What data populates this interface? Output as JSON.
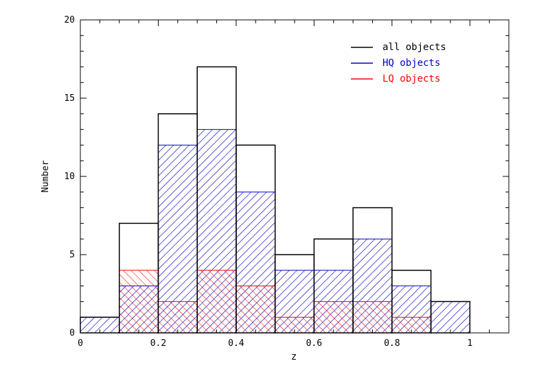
{
  "chart_data": {
    "type": "bar",
    "subtype": "histogram",
    "xlabel": "z",
    "ylabel": "Number",
    "xlim": [
      0,
      1.1
    ],
    "ylim": [
      0,
      20
    ],
    "x_ticks": [
      0,
      0.2,
      0.4,
      0.6,
      0.8,
      1
    ],
    "x_tick_labels": [
      "0",
      "0.2",
      "0.4",
      "0.6",
      "0.8",
      "1"
    ],
    "y_ticks": [
      0,
      5,
      10,
      15,
      20
    ],
    "y_tick_labels": [
      "0",
      "5",
      "10",
      "15",
      "20"
    ],
    "bin_edges": [
      0,
      0.1,
      0.2,
      0.3,
      0.4,
      0.5,
      0.6,
      0.7,
      0.8,
      0.9,
      1.0
    ],
    "series": [
      {
        "name": "all objects",
        "color": "#000000",
        "fill": "none",
        "values": [
          1,
          7,
          14,
          17,
          12,
          5,
          6,
          8,
          4,
          2
        ]
      },
      {
        "name": "HQ objects",
        "color": "#0000cc",
        "fill": "hatch-diagonal",
        "values": [
          1,
          3,
          12,
          13,
          9,
          4,
          4,
          6,
          3,
          2
        ]
      },
      {
        "name": "LQ objects",
        "color": "#ff0000",
        "fill": "hatch-antidiagonal",
        "values": [
          0,
          4,
          2,
          4,
          3,
          1,
          2,
          2,
          1,
          0
        ]
      }
    ],
    "legend_position": "top-right",
    "grid": false
  }
}
